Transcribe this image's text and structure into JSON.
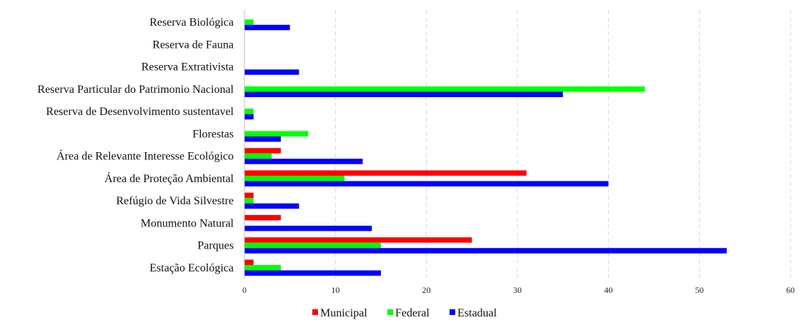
{
  "chart_data": {
    "type": "bar",
    "orientation": "horizontal",
    "categories": [
      "Reserva Biológica",
      "Reserva de Fauna",
      "Reserva Extrativista",
      "Reserva Particular do Patrimonio Nacional",
      "Reserva de Desenvolvimento sustentavel",
      "Florestas",
      "Área de Relevante Interesse Ecológico",
      "Área de Proteção Ambiental",
      "Refúgio de Vida Silvestre",
      "Monumento Natural",
      "Parques",
      "Estação Ecológica"
    ],
    "series": [
      {
        "name": "Municipal",
        "color": "#ff0000",
        "values": [
          0,
          0,
          0,
          0,
          0,
          0,
          4,
          31,
          1,
          4,
          25,
          1
        ]
      },
      {
        "name": "Federal",
        "color": "#00ff00",
        "values": [
          1,
          0,
          0,
          44,
          1,
          7,
          3,
          11,
          1,
          0,
          15,
          4
        ]
      },
      {
        "name": "Estadual",
        "color": "#0000ff",
        "values": [
          5,
          0,
          6,
          35,
          1,
          4,
          13,
          40,
          6,
          14,
          53,
          15
        ]
      }
    ],
    "xlim": [
      0,
      60
    ],
    "xticks": [
      0,
      10,
      20,
      30,
      40,
      50,
      60
    ],
    "grid": "vertical dashed",
    "legend_position": "bottom"
  }
}
